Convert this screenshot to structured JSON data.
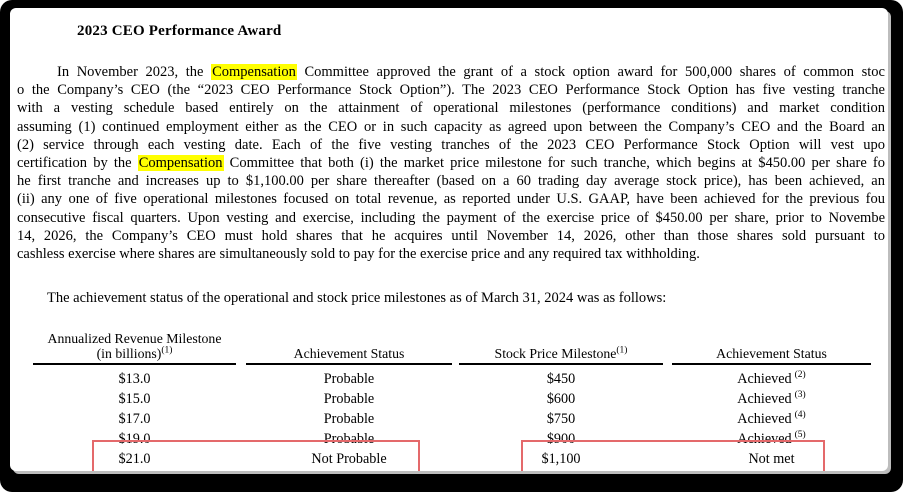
{
  "colors": {
    "frame": "#000000",
    "page": "#ffffff",
    "highlight": "#ffff00",
    "rule": "#000000",
    "annotation_box": "#e4696b"
  },
  "document": {
    "title": "2023 CEO Performance Award",
    "paragraph": {
      "lines": [
        {
          "indent": 40,
          "justify": true,
          "segments": [
            {
              "text": "In November 2023, the "
            },
            {
              "text": "Compensation",
              "highlight": true
            },
            {
              "text": " Committee approved the grant of a stock option award for 500,000 shares of common stoc"
            }
          ]
        },
        {
          "indent": 0,
          "justify": true,
          "segments": [
            {
              "text": "o the Company’s CEO (the “2023 CEO Performance Stock Option”). The 2023 CEO Performance Stock Option has five vesting tranche"
            }
          ]
        },
        {
          "indent": 0,
          "justify": true,
          "segments": [
            {
              "text": "with a vesting schedule based entirely on the attainment of operational milestones (performance conditions) and market condition"
            }
          ]
        },
        {
          "indent": 0,
          "justify": true,
          "segments": [
            {
              "text": "assuming (1) continued employment either as the CEO or in such capacity as agreed upon between the Company’s CEO and the Board an"
            }
          ]
        },
        {
          "indent": 0,
          "justify": true,
          "segments": [
            {
              "text": "(2) service through each vesting date. Each of the five vesting tranches of the 2023 CEO Performance Stock Option will vest upo"
            }
          ]
        },
        {
          "indent": 0,
          "justify": true,
          "segments": [
            {
              "text": "certification by the "
            },
            {
              "text": "Compensation",
              "highlight": true
            },
            {
              "text": " Committee that both (i) the market price milestone for such tranche, which begins at $450.00 per share fo"
            }
          ]
        },
        {
          "indent": 0,
          "justify": true,
          "segments": [
            {
              "text": "he first tranche and increases up to $1,100.00 per share thereafter (based on a 60 trading day average stock price), has been achieved, an"
            }
          ]
        },
        {
          "indent": 0,
          "justify": true,
          "segments": [
            {
              "text": "(ii) any one of five operational milestones focused on total revenue, as reported under U.S. GAAP, have been achieved for the previous fou"
            }
          ]
        },
        {
          "indent": 0,
          "justify": true,
          "segments": [
            {
              "text": "consecutive fiscal quarters. Upon vesting and exercise, including the payment of the exercise price of $450.00 per share, prior to Novembe"
            }
          ]
        },
        {
          "indent": 0,
          "justify": true,
          "segments": [
            {
              "text": "14, 2026, the Company’s CEO must hold shares that he acquires until November 14, 2026, other than those shares sold pursuant to"
            }
          ]
        },
        {
          "indent": 0,
          "justify": false,
          "segments": [
            {
              "text": "cashless exercise where shares are simultaneously sold to pay for the exercise price and any required tax withholding."
            }
          ]
        }
      ]
    },
    "intro_line": "The achievement status of the operational and stock price milestones as of March 31, 2024 was as follows:",
    "table": {
      "columns": [
        {
          "header_lines": [
            {
              "text": "Annualized Revenue Milestone"
            },
            {
              "text": "(in billions)",
              "sup": "(1)"
            }
          ]
        },
        {
          "header_lines": [
            {
              "text": "Achievement Status"
            }
          ]
        },
        {
          "header_lines": [
            {
              "text": "Stock Price Milestone",
              "sup": "(1)"
            }
          ]
        },
        {
          "header_lines": [
            {
              "text": "Achievement Status"
            }
          ]
        }
      ],
      "rows": [
        [
          {
            "text": "$13.0"
          },
          {
            "text": "Probable"
          },
          {
            "text": "$450"
          },
          {
            "text": "Achieved",
            "sup": "(2)"
          }
        ],
        [
          {
            "text": "$15.0"
          },
          {
            "text": "Probable"
          },
          {
            "text": "$600"
          },
          {
            "text": "Achieved",
            "sup": "(3)"
          }
        ],
        [
          {
            "text": "$17.0"
          },
          {
            "text": "Probable"
          },
          {
            "text": "$750"
          },
          {
            "text": "Achieved",
            "sup": "(4)"
          }
        ],
        [
          {
            "text": "$19.0"
          },
          {
            "text": "Probable"
          },
          {
            "text": "$900"
          },
          {
            "text": "Achieved",
            "sup": "(5)"
          }
        ],
        [
          {
            "text": "$21.0"
          },
          {
            "text": "Not Probable"
          },
          {
            "text": "$1,100"
          },
          {
            "text": "Not met"
          }
        ]
      ],
      "annotation_boxes": [
        {
          "label": "not-probable-row-highlight"
        },
        {
          "label": "not-met-row-highlight"
        }
      ]
    }
  }
}
